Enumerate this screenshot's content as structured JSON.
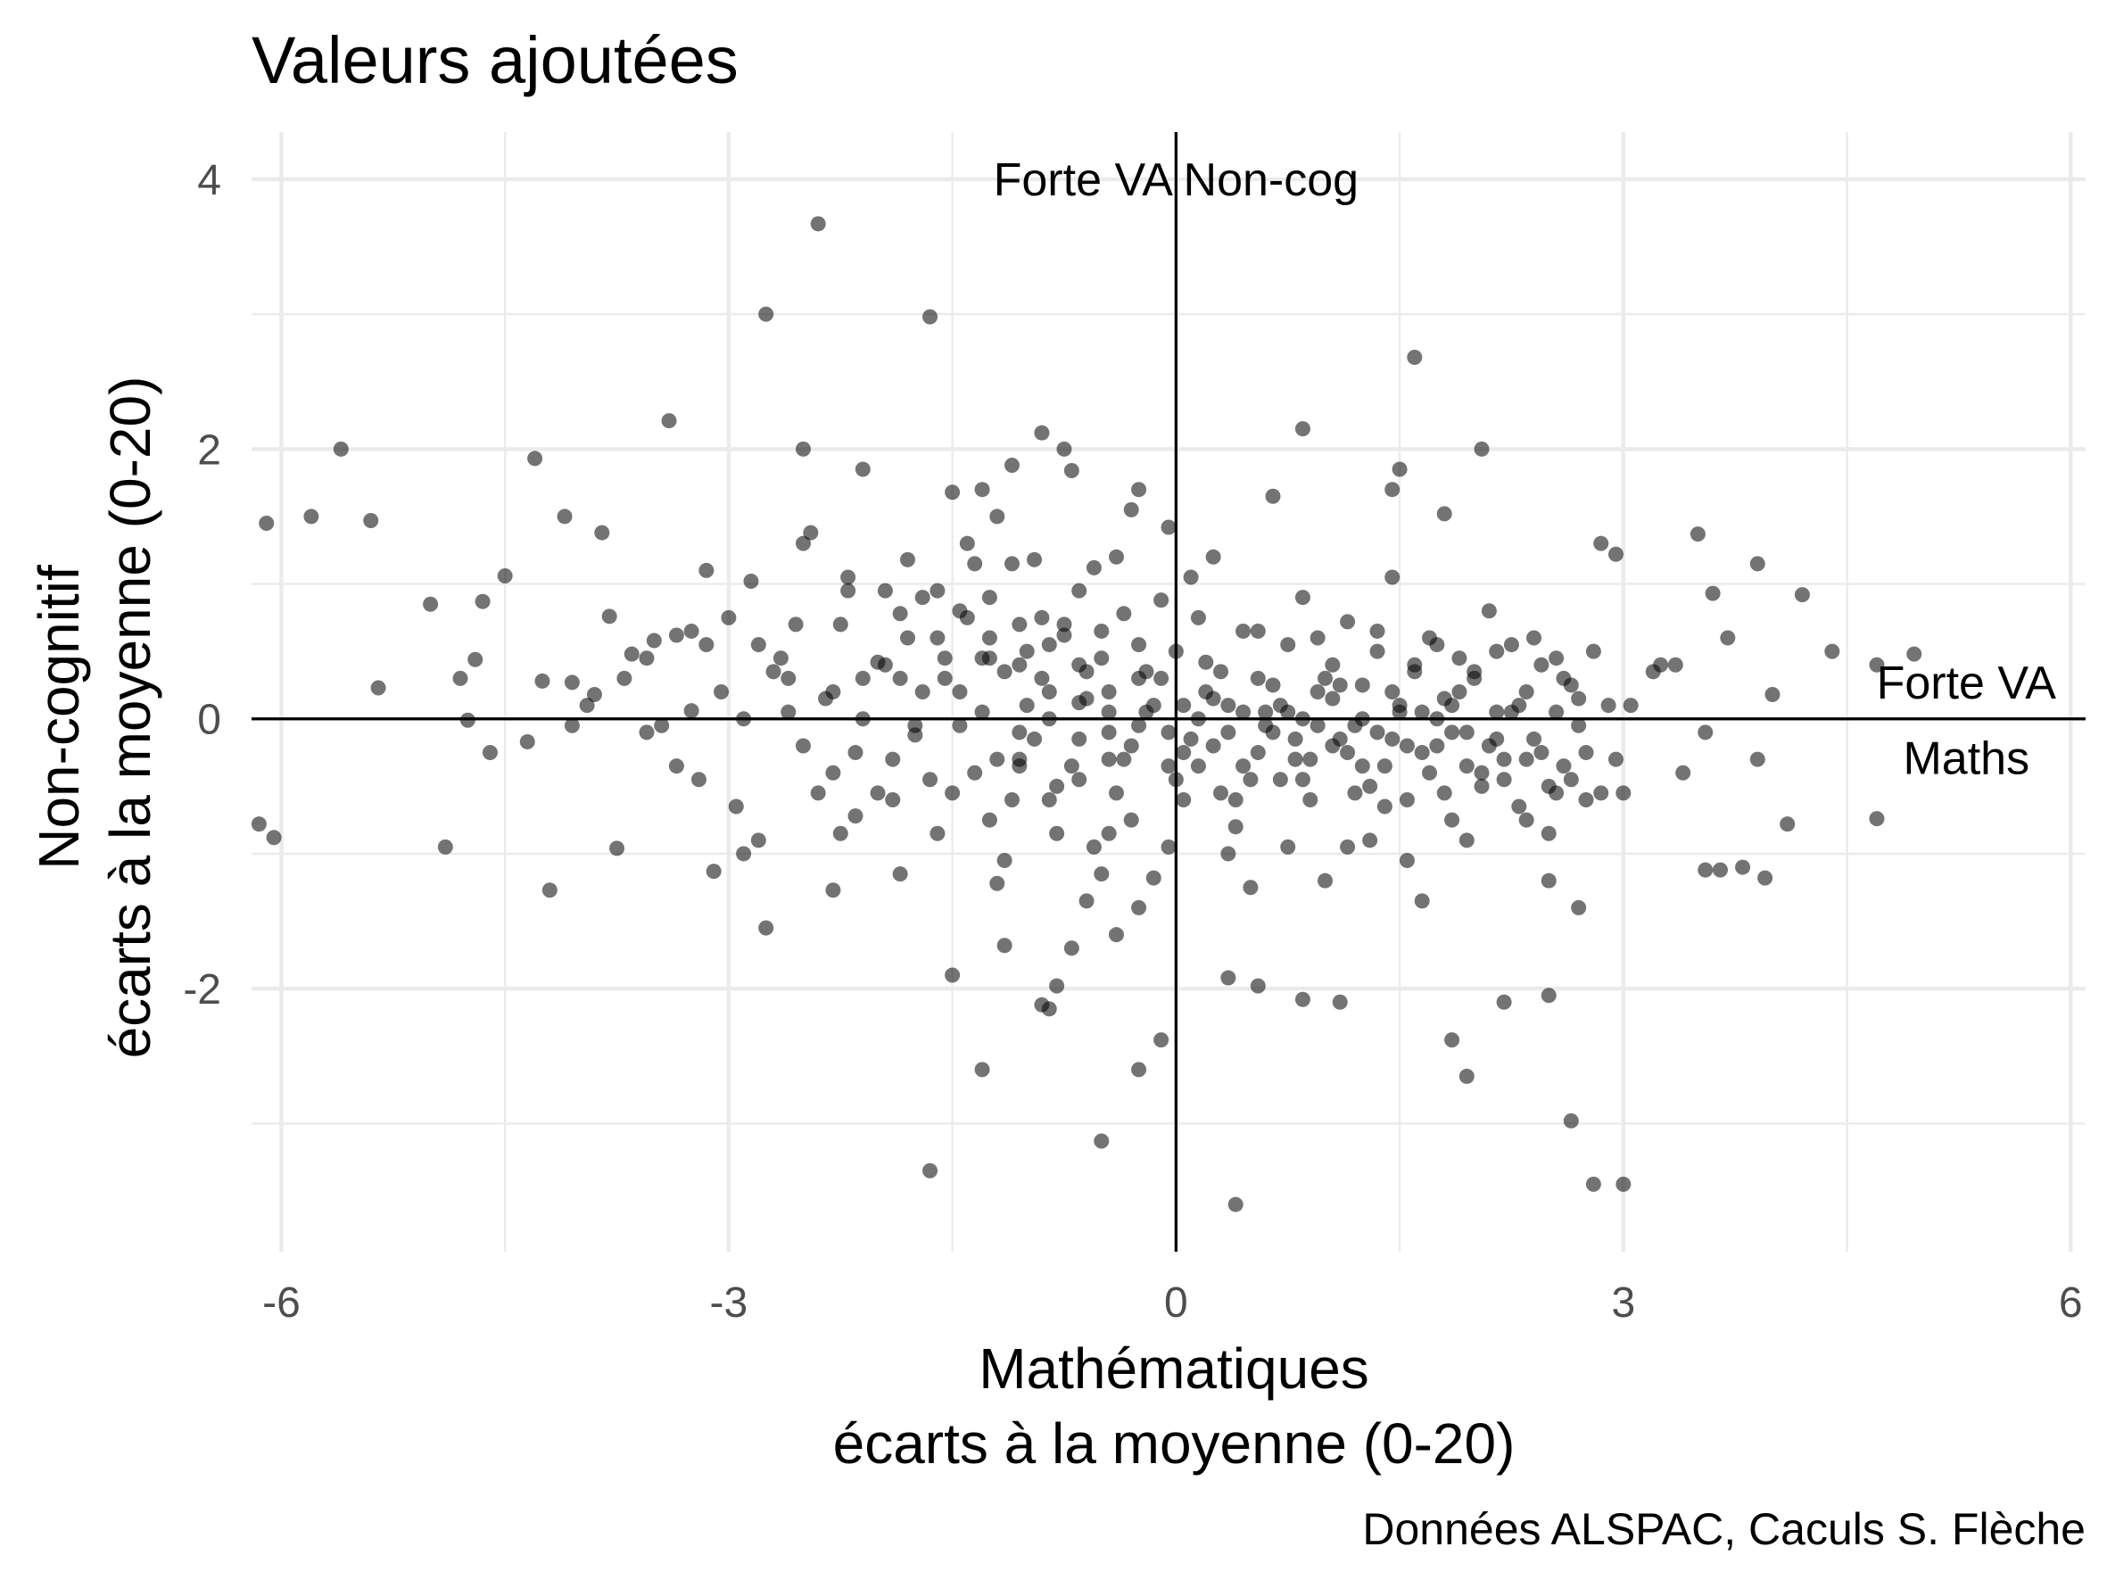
{
  "chart_data": {
    "type": "scatter",
    "title": "Valeurs ajoutées",
    "xlabel": [
      "Mathématiques",
      "écarts à la moyenne (0-20)"
    ],
    "ylabel": [
      "Non-cognitif",
      "écarts à la moyenne (0-20)"
    ],
    "caption": "Données ALSPAC, Caculs S. Flèche",
    "xlim": [
      -6.2,
      6.1
    ],
    "ylim": [
      -3.95,
      4.35
    ],
    "x_ticks": [
      -6,
      -3,
      0,
      3,
      6
    ],
    "x_tick_labels": [
      "-6",
      "-3",
      "0",
      "3",
      "6"
    ],
    "y_ticks": [
      -2,
      0,
      2,
      4
    ],
    "y_tick_labels": [
      "-2",
      "0",
      "2",
      "4"
    ],
    "reference_lines": {
      "x": 0,
      "y": 0
    },
    "annotations": [
      {
        "text": "Forte VA Non-cog",
        "x": 0,
        "y": 4
      },
      {
        "text": "Forte VA",
        "x": 5.3,
        "y": 0.27
      },
      {
        "text": "Maths",
        "x": 5.3,
        "y": -0.29
      }
    ],
    "point_color": "#000000",
    "point_opacity": 0.55,
    "grid": true,
    "points": [
      [
        -6.1,
        1.45
      ],
      [
        -5.8,
        1.5
      ],
      [
        -5.6,
        2.0
      ],
      [
        -5.4,
        1.47
      ],
      [
        -6.15,
        -0.78
      ],
      [
        -6.05,
        -0.88
      ],
      [
        -5.35,
        0.23
      ],
      [
        -5.0,
        0.85
      ],
      [
        -4.9,
        -0.95
      ],
      [
        -4.8,
        0.3
      ],
      [
        -4.75,
        -0.01
      ],
      [
        -4.7,
        0.44
      ],
      [
        -4.65,
        0.87
      ],
      [
        -4.6,
        -0.25
      ],
      [
        -4.5,
        1.06
      ],
      [
        -4.35,
        -0.17
      ],
      [
        -4.3,
        1.93
      ],
      [
        -4.25,
        0.28
      ],
      [
        -4.2,
        -1.27
      ],
      [
        -4.1,
        1.5
      ],
      [
        -4.05,
        0.27
      ],
      [
        -3.9,
        0.18
      ],
      [
        -3.8,
        0.76
      ],
      [
        -3.85,
        1.38
      ],
      [
        -3.75,
        -0.96
      ],
      [
        -3.65,
        0.48
      ],
      [
        -3.55,
        0.45
      ],
      [
        -3.45,
        -0.05
      ],
      [
        -3.4,
        2.21
      ],
      [
        -3.25,
        0.06
      ],
      [
        -3.15,
        1.1
      ],
      [
        -3.1,
        -1.13
      ],
      [
        -3.05,
        0.2
      ],
      [
        -2.9,
        -1.0
      ],
      [
        -2.85,
        1.02
      ],
      [
        -2.8,
        0.55
      ],
      [
        -2.75,
        -1.55
      ],
      [
        -2.7,
        0.35
      ],
      [
        -2.6,
        0.3
      ],
      [
        -2.55,
        0.7
      ],
      [
        -2.5,
        1.3
      ],
      [
        -2.45,
        1.38
      ],
      [
        -2.4,
        -0.55
      ],
      [
        -2.35,
        0.15
      ],
      [
        -2.3,
        -1.27
      ],
      [
        -2.25,
        -0.85
      ],
      [
        -2.2,
        1.05
      ],
      [
        -2.15,
        -0.72
      ],
      [
        -2.1,
        0.0
      ],
      [
        -2.0,
        -0.55
      ],
      [
        -1.95,
        0.4
      ],
      [
        -1.9,
        -0.6
      ],
      [
        -1.85,
        0.78
      ],
      [
        -1.8,
        1.18
      ],
      [
        -1.75,
        -0.05
      ],
      [
        -1.7,
        0.9
      ],
      [
        -1.65,
        2.98
      ],
      [
        -1.6,
        0.6
      ],
      [
        -1.55,
        0.3
      ],
      [
        -1.5,
        -1.9
      ],
      [
        -1.45,
        0.8
      ],
      [
        -1.4,
        1.3
      ],
      [
        -1.35,
        1.15
      ],
      [
        -1.3,
        0.45
      ],
      [
        -1.25,
        0.6
      ],
      [
        -1.2,
        1.5
      ],
      [
        -1.15,
        -1.05
      ],
      [
        -1.1,
        1.15
      ],
      [
        -1.05,
        0.4
      ],
      [
        -1.0,
        0.5
      ],
      [
        -1.2,
        -1.22
      ],
      [
        -1.05,
        -0.3
      ],
      [
        -0.95,
        1.18
      ],
      [
        -0.9,
        0.75
      ],
      [
        -0.85,
        0.2
      ],
      [
        -0.8,
        -0.5
      ],
      [
        -0.75,
        0.62
      ],
      [
        -0.7,
        1.84
      ],
      [
        -0.65,
        0.12
      ],
      [
        -0.6,
        0.35
      ],
      [
        -0.55,
        1.12
      ],
      [
        -0.5,
        0.65
      ],
      [
        -0.45,
        -0.1
      ],
      [
        -0.4,
        1.2
      ],
      [
        -0.35,
        0.78
      ],
      [
        -0.3,
        -0.75
      ],
      [
        -0.25,
        1.7
      ],
      [
        -0.2,
        0.35
      ],
      [
        -0.15,
        -1.18
      ],
      [
        -0.1,
        0.88
      ],
      [
        -0.05,
        1.42
      ],
      [
        0.0,
        0.5
      ],
      [
        0.05,
        -0.25
      ],
      [
        0.1,
        1.05
      ],
      [
        0.15,
        -0.35
      ],
      [
        0.2,
        0.42
      ],
      [
        0.25,
        1.2
      ],
      [
        0.3,
        -0.55
      ],
      [
        0.35,
        0.1
      ],
      [
        0.4,
        -0.8
      ],
      [
        0.45,
        0.65
      ],
      [
        0.5,
        -1.25
      ],
      [
        0.55,
        0.3
      ],
      [
        0.6,
        -0.05
      ],
      [
        0.65,
        1.65
      ],
      [
        0.7,
        -0.45
      ],
      [
        0.75,
        0.55
      ],
      [
        0.8,
        -0.3
      ],
      [
        0.85,
        0.9
      ],
      [
        0.9,
        -0.6
      ],
      [
        0.95,
        0.2
      ],
      [
        1.0,
        -1.2
      ],
      [
        1.05,
        0.4
      ],
      [
        1.1,
        -0.15
      ],
      [
        1.15,
        0.72
      ],
      [
        1.2,
        -0.55
      ],
      [
        1.25,
        0.25
      ],
      [
        1.3,
        -0.9
      ],
      [
        1.35,
        0.5
      ],
      [
        1.4,
        -0.35
      ],
      [
        1.45,
        1.05
      ],
      [
        1.5,
        0.1
      ],
      [
        1.55,
        -0.6
      ],
      [
        1.6,
        0.35
      ],
      [
        1.65,
        -1.35
      ],
      [
        1.7,
        0.6
      ],
      [
        1.75,
        -0.2
      ],
      [
        1.8,
        0.15
      ],
      [
        1.85,
        -0.75
      ],
      [
        1.9,
        0.45
      ],
      [
        1.95,
        -0.1
      ],
      [
        2.0,
        0.3
      ],
      [
        2.05,
        -0.5
      ],
      [
        2.1,
        0.8
      ],
      [
        2.15,
        0.05
      ],
      [
        2.2,
        -0.3
      ],
      [
        2.25,
        0.55
      ],
      [
        2.3,
        -0.65
      ],
      [
        2.35,
        0.2
      ],
      [
        2.4,
        -0.15
      ],
      [
        2.45,
        0.4
      ],
      [
        2.5,
        -0.85
      ],
      [
        2.55,
        0.05
      ],
      [
        2.6,
        0.3
      ],
      [
        2.65,
        -0.45
      ],
      [
        2.7,
        0.15
      ],
      [
        2.75,
        -0.25
      ],
      [
        2.8,
        0.5
      ],
      [
        2.85,
        -0.55
      ],
      [
        2.9,
        0.1
      ],
      [
        2.95,
        -0.3
      ],
      [
        -2.75,
        3.0
      ],
      [
        -2.4,
        3.67
      ],
      [
        1.6,
        2.68
      ],
      [
        0.85,
        2.15
      ],
      [
        2.05,
        2.0
      ],
      [
        1.8,
        1.52
      ],
      [
        1.5,
        1.85
      ],
      [
        1.45,
        1.7
      ],
      [
        -1.3,
        1.7
      ],
      [
        -0.9,
        2.12
      ],
      [
        -0.75,
        2.0
      ],
      [
        -1.5,
        1.68
      ],
      [
        -2.1,
        1.85
      ],
      [
        -2.5,
        2.0
      ],
      [
        -0.3,
        1.55
      ],
      [
        -1.1,
        1.88
      ],
      [
        -0.55,
        -0.95
      ],
      [
        -0.5,
        -1.15
      ],
      [
        -0.4,
        -1.6
      ],
      [
        -0.25,
        -1.4
      ],
      [
        -0.9,
        -2.12
      ],
      [
        -0.8,
        -1.98
      ],
      [
        -0.85,
        -2.15
      ],
      [
        -0.1,
        -2.38
      ],
      [
        -0.5,
        -3.13
      ],
      [
        -1.3,
        -2.6
      ],
      [
        -1.65,
        -3.35
      ],
      [
        0.4,
        -3.6
      ],
      [
        0.35,
        -1.92
      ],
      [
        0.55,
        -1.98
      ],
      [
        0.85,
        -2.08
      ],
      [
        1.1,
        -2.1
      ],
      [
        1.85,
        -2.38
      ],
      [
        1.95,
        -2.65
      ],
      [
        2.2,
        -2.1
      ],
      [
        2.5,
        -2.05
      ],
      [
        2.65,
        -2.98
      ],
      [
        2.8,
        -3.45
      ],
      [
        3.0,
        -3.45
      ],
      [
        -0.6,
        -1.35
      ],
      [
        -0.7,
        -1.7
      ],
      [
        -0.25,
        -2.6
      ],
      [
        -1.15,
        -1.68
      ],
      [
        3.5,
        1.37
      ],
      [
        3.6,
        0.93
      ],
      [
        3.7,
        0.6
      ],
      [
        3.9,
        1.15
      ],
      [
        3.35,
        0.4
      ],
      [
        3.2,
        0.35
      ],
      [
        3.4,
        -0.4
      ],
      [
        3.55,
        -0.1
      ],
      [
        3.9,
        -0.3
      ],
      [
        3.65,
        -1.12
      ],
      [
        3.95,
        -1.18
      ],
      [
        4.0,
        0.18
      ],
      [
        4.2,
        0.92
      ],
      [
        4.4,
        0.5
      ],
      [
        4.7,
        0.4
      ],
      [
        4.95,
        0.48
      ],
      [
        4.7,
        -0.74
      ],
      [
        4.1,
        -0.78
      ],
      [
        3.55,
        -1.12
      ],
      [
        3.8,
        -1.1
      ],
      [
        2.95,
        1.22
      ],
      [
        2.85,
        1.3
      ],
      [
        2.7,
        -1.4
      ],
      [
        3.0,
        -0.55
      ],
      [
        3.05,
        0.1
      ],
      [
        3.25,
        0.4
      ],
      [
        2.5,
        -1.2
      ],
      [
        -2.2,
        0.95
      ],
      [
        -2.25,
        0.7
      ],
      [
        -2.0,
        0.42
      ],
      [
        -2.3,
        0.2
      ],
      [
        -2.6,
        0.05
      ],
      [
        -2.9,
        0.0
      ],
      [
        -3.2,
        -0.45
      ],
      [
        -3.35,
        -0.35
      ],
      [
        -3.55,
        -0.1
      ],
      [
        -3.7,
        0.3
      ],
      [
        -3.95,
        0.1
      ],
      [
        -4.05,
        -0.05
      ],
      [
        -3.15,
        0.55
      ],
      [
        -3.25,
        0.65
      ],
      [
        -3.35,
        0.62
      ],
      [
        -3.5,
        0.58
      ],
      [
        -2.8,
        -0.9
      ],
      [
        -1.95,
        0.95
      ],
      [
        -1.75,
        -0.12
      ],
      [
        -1.55,
        0.45
      ],
      [
        -1.35,
        -0.4
      ],
      [
        -1.15,
        0.35
      ],
      [
        -0.95,
        -0.15
      ],
      [
        -0.75,
        0.7
      ],
      [
        -0.65,
        -0.45
      ],
      [
        -0.45,
        0.2
      ],
      [
        -0.35,
        -0.3
      ],
      [
        -0.15,
        0.1
      ],
      [
        0.05,
        -0.6
      ],
      [
        0.25,
        0.15
      ],
      [
        0.45,
        -0.35
      ],
      [
        0.65,
        0.25
      ],
      [
        0.85,
        -0.45
      ],
      [
        1.05,
        0.15
      ],
      [
        1.25,
        -0.35
      ],
      [
        1.45,
        0.2
      ],
      [
        1.65,
        -0.25
      ],
      [
        1.85,
        0.1
      ],
      [
        2.05,
        -0.4
      ],
      [
        2.25,
        0.05
      ],
      [
        2.45,
        -0.25
      ],
      [
        2.65,
        0.25
      ],
      [
        -1.9,
        -0.3
      ],
      [
        -1.7,
        0.2
      ],
      [
        -1.5,
        -0.55
      ],
      [
        -1.3,
        0.05
      ],
      [
        -1.1,
        -0.6
      ],
      [
        -0.9,
        0.3
      ],
      [
        -0.7,
        -0.35
      ],
      [
        -0.5,
        0.45
      ],
      [
        -0.3,
        -0.2
      ],
      [
        -0.1,
        0.3
      ],
      [
        0.1,
        -0.15
      ],
      [
        0.3,
        0.35
      ],
      [
        0.5,
        -0.45
      ],
      [
        0.7,
        0.1
      ],
      [
        0.9,
        -0.3
      ],
      [
        1.1,
        0.25
      ],
      [
        1.3,
        -0.5
      ],
      [
        1.5,
        0.05
      ],
      [
        1.7,
        -0.4
      ],
      [
        1.9,
        0.2
      ],
      [
        2.1,
        -0.2
      ],
      [
        2.3,
        0.1
      ],
      [
        2.5,
        -0.5
      ],
      [
        2.7,
        -0.05
      ],
      [
        -2.5,
        -0.2
      ],
      [
        -2.3,
        -0.4
      ],
      [
        -2.1,
        0.3
      ],
      [
        -1.8,
        0.6
      ],
      [
        -1.6,
        -0.85
      ],
      [
        -1.4,
        0.75
      ],
      [
        -1.2,
        -0.3
      ],
      [
        -1.0,
        0.1
      ],
      [
        -0.8,
        -0.85
      ],
      [
        -0.6,
        0.15
      ],
      [
        -0.4,
        -0.55
      ],
      [
        -0.2,
        0.05
      ],
      [
        0.0,
        -0.45
      ],
      [
        0.2,
        0.2
      ],
      [
        0.4,
        -0.6
      ],
      [
        0.6,
        0.05
      ],
      [
        0.8,
        -0.15
      ],
      [
        1.0,
        0.3
      ],
      [
        1.2,
        -0.05
      ],
      [
        1.4,
        -0.65
      ],
      [
        1.6,
        0.4
      ],
      [
        1.8,
        -0.55
      ],
      [
        2.0,
        0.35
      ],
      [
        2.2,
        -0.45
      ],
      [
        2.4,
        0.6
      ],
      [
        2.6,
        -0.35
      ],
      [
        -3.0,
        0.75
      ],
      [
        -2.95,
        -0.65
      ],
      [
        -2.65,
        0.45
      ],
      [
        -2.15,
        -0.25
      ],
      [
        -1.85,
        -1.15
      ],
      [
        -1.6,
        0.95
      ],
      [
        -1.25,
        0.9
      ],
      [
        -1.05,
        -0.35
      ],
      [
        -0.85,
        0.55
      ],
      [
        -0.65,
        0.95
      ],
      [
        -0.45,
        -0.85
      ],
      [
        -0.25,
        0.55
      ],
      [
        -0.05,
        -0.95
      ],
      [
        0.15,
        0.75
      ],
      [
        0.35,
        -1.0
      ],
      [
        0.55,
        0.65
      ],
      [
        0.75,
        -0.95
      ],
      [
        0.95,
        0.6
      ],
      [
        1.15,
        -0.95
      ],
      [
        1.35,
        0.65
      ],
      [
        1.55,
        -1.05
      ],
      [
        1.75,
        0.55
      ],
      [
        1.95,
        -0.9
      ],
      [
        2.15,
        0.5
      ],
      [
        2.35,
        -0.75
      ],
      [
        2.55,
        0.45
      ],
      [
        2.75,
        -0.6
      ],
      [
        -1.45,
        -0.05
      ],
      [
        -1.25,
        -0.75
      ],
      [
        -1.05,
        0.7
      ],
      [
        -0.85,
        -0.6
      ],
      [
        -0.65,
        0.4
      ],
      [
        -0.45,
        -0.3
      ],
      [
        -0.25,
        0.3
      ],
      [
        -0.05,
        -0.35
      ],
      [
        0.15,
        0.0
      ],
      [
        0.35,
        -0.1
      ],
      [
        0.55,
        -0.25
      ],
      [
        0.75,
        0.05
      ],
      [
        0.95,
        -0.05
      ],
      [
        1.15,
        -0.25
      ],
      [
        1.35,
        -0.1
      ],
      [
        1.55,
        -0.2
      ],
      [
        1.75,
        0.0
      ],
      [
        1.95,
        -0.35
      ],
      [
        2.15,
        -0.15
      ],
      [
        2.35,
        -0.3
      ],
      [
        2.55,
        -0.55
      ],
      [
        -1.85,
        0.3
      ],
      [
        -1.65,
        -0.45
      ],
      [
        -1.45,
        0.2
      ],
      [
        -1.25,
        0.45
      ],
      [
        -1.05,
        -0.1
      ],
      [
        -0.85,
        0.0
      ],
      [
        -0.65,
        -0.15
      ],
      [
        -0.45,
        0.05
      ],
      [
        -0.25,
        -0.05
      ],
      [
        -0.05,
        -0.1
      ],
      [
        0.05,
        0.1
      ],
      [
        0.25,
        -0.2
      ],
      [
        0.45,
        0.05
      ],
      [
        0.65,
        -0.1
      ],
      [
        0.85,
        0.0
      ],
      [
        1.05,
        -0.2
      ],
      [
        1.25,
        0.0
      ],
      [
        1.45,
        -0.15
      ],
      [
        1.65,
        0.05
      ],
      [
        1.85,
        -0.1
      ]
    ]
  }
}
